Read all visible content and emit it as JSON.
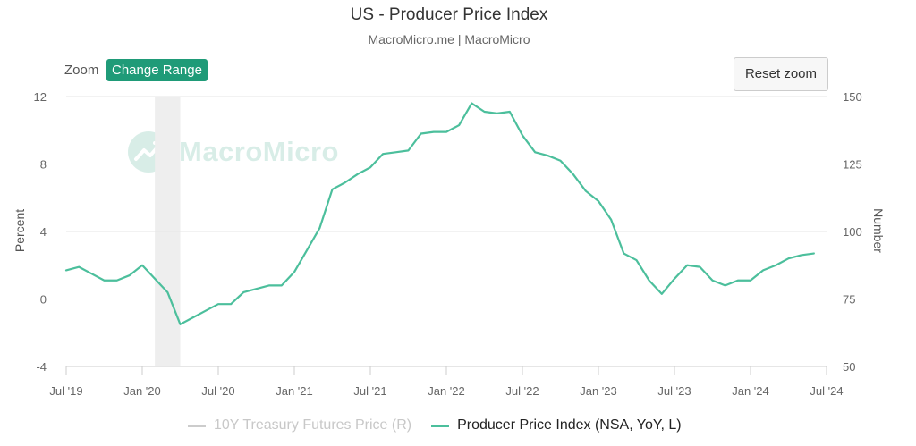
{
  "header": {
    "title": "US - Producer Price Index",
    "subtitle": "MacroMicro.me | MacroMicro"
  },
  "toolbar": {
    "zoom_label": "Zoom",
    "change_range_label": "Change Range",
    "reset_zoom_label": "Reset zoom"
  },
  "watermark": {
    "text": "MacroMicro"
  },
  "colors": {
    "series_line": "#4cbf9c",
    "accent": "#1f9b78",
    "recession_band": "#eeeeee",
    "muted_legend": "#cccccc"
  },
  "chart_data": {
    "type": "line",
    "title": "US - Producer Price Index",
    "subtitle": "MacroMicro.me | MacroMicro",
    "ylabel": "Percent",
    "ylabel_right": "Number",
    "ylim": [
      -4,
      12
    ],
    "ylim_right": [
      50,
      150
    ],
    "yticks": [
      "-4",
      "0",
      "4",
      "8",
      "12"
    ],
    "yticks_right": [
      "50",
      "75",
      "100",
      "125",
      "150"
    ],
    "xticks": [
      "Jul '19",
      "Jan '20",
      "Jul '20",
      "Jan '21",
      "Jul '21",
      "Jan '22",
      "Jul '22",
      "Jan '23",
      "Jul '23",
      "Jan '24",
      "Jul '24"
    ],
    "x_range": [
      "2019-07",
      "2024-07"
    ],
    "grid": "horizontal",
    "legend_position": "bottom",
    "shaded_periods": [
      {
        "start": "2020-02",
        "end": "2020-04"
      }
    ],
    "series": [
      {
        "name": "10Y Treasury Futures Price (R)",
        "axis": "right",
        "visible": false,
        "color": "#cccccc",
        "x": [],
        "values": []
      },
      {
        "name": "Producer Price Index (NSA, YoY, L)",
        "axis": "left",
        "visible": true,
        "color": "#4cbf9c",
        "x": [
          "2019-07",
          "2019-08",
          "2019-09",
          "2019-10",
          "2019-11",
          "2019-12",
          "2020-01",
          "2020-02",
          "2020-03",
          "2020-04",
          "2020-05",
          "2020-06",
          "2020-07",
          "2020-08",
          "2020-09",
          "2020-10",
          "2020-11",
          "2020-12",
          "2021-01",
          "2021-02",
          "2021-03",
          "2021-04",
          "2021-05",
          "2021-06",
          "2021-07",
          "2021-08",
          "2021-09",
          "2021-10",
          "2021-11",
          "2021-12",
          "2022-01",
          "2022-02",
          "2022-03",
          "2022-04",
          "2022-05",
          "2022-06",
          "2022-07",
          "2022-08",
          "2022-09",
          "2022-10",
          "2022-11",
          "2022-12",
          "2023-01",
          "2023-02",
          "2023-03",
          "2023-04",
          "2023-05",
          "2023-06",
          "2023-07",
          "2023-08",
          "2023-09",
          "2023-10",
          "2023-11",
          "2023-12",
          "2024-01",
          "2024-02",
          "2024-03",
          "2024-04",
          "2024-05",
          "2024-06"
        ],
        "values": [
          1.7,
          1.9,
          1.5,
          1.1,
          1.1,
          1.4,
          2.0,
          1.2,
          0.4,
          -1.5,
          -1.1,
          -0.7,
          -0.3,
          -0.3,
          0.4,
          0.6,
          0.8,
          0.8,
          1.6,
          2.9,
          4.2,
          6.5,
          6.9,
          7.4,
          7.8,
          8.6,
          8.7,
          8.8,
          9.8,
          9.9,
          9.9,
          10.3,
          11.6,
          11.1,
          11.0,
          11.1,
          9.7,
          8.7,
          8.5,
          8.2,
          7.4,
          6.4,
          5.8,
          4.7,
          2.7,
          2.3,
          1.1,
          0.3,
          1.2,
          2.0,
          1.9,
          1.1,
          0.8,
          1.1,
          1.1,
          1.7,
          2.0,
          2.4,
          2.6,
          2.7
        ]
      }
    ]
  }
}
